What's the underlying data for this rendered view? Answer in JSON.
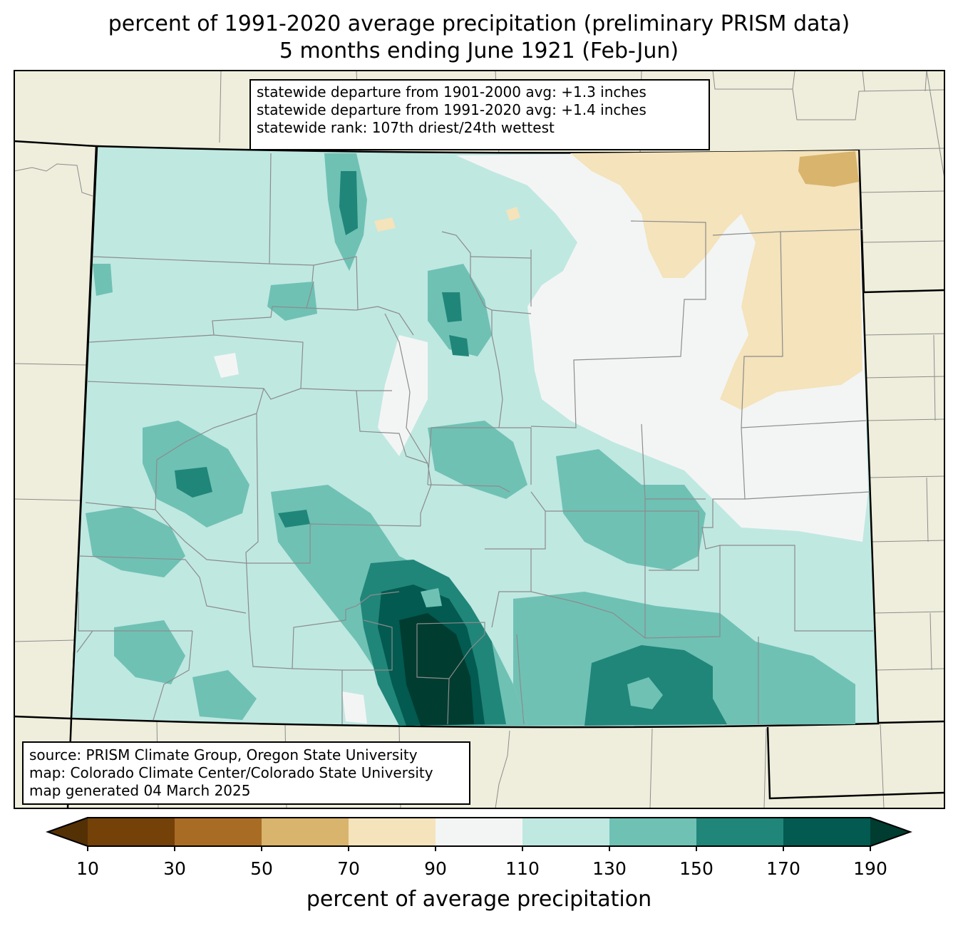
{
  "title": {
    "line1": "percent of 1991-2020 average precipitation (preliminary PRISM data)",
    "line2": "5 months ending June 1921 (Feb-Jun)"
  },
  "stats": {
    "line1": "statewide departure from 1901-2000 avg: +1.3 inches",
    "line2": "statewide departure from 1991-2020 avg: +1.4 inches",
    "line3": "statewide rank: 107th driest/24th wettest"
  },
  "source": {
    "line1": "source: PRISM Climate Group, Oregon State University",
    "line2": "map: Colorado Climate Center/Colorado State University",
    "line3": "map generated 04 March 2025"
  },
  "colorbar": {
    "label": "percent of average precipitation",
    "ticks": [
      "10",
      "30",
      "50",
      "70",
      "90",
      "110",
      "130",
      "150",
      "170",
      "190"
    ],
    "under_color": "#543005",
    "over_color": "#003c30",
    "colors": [
      "#8c510a",
      "#bf812d",
      "#dfc27d",
      "#f6e8c3",
      "#f5f5f5",
      "#c7eae5",
      "#80cdc1",
      "#35978f",
      "#01665e"
    ],
    "bin_colors": [
      "#744108",
      "#a96c25",
      "#d9b46c",
      "#f4e3bb",
      "#f3f5f4",
      "#bfe8e1",
      "#6fc1b4",
      "#208679",
      "#025a50"
    ]
  },
  "map": {
    "land_color": "#efeedc",
    "region": "Colorado"
  }
}
